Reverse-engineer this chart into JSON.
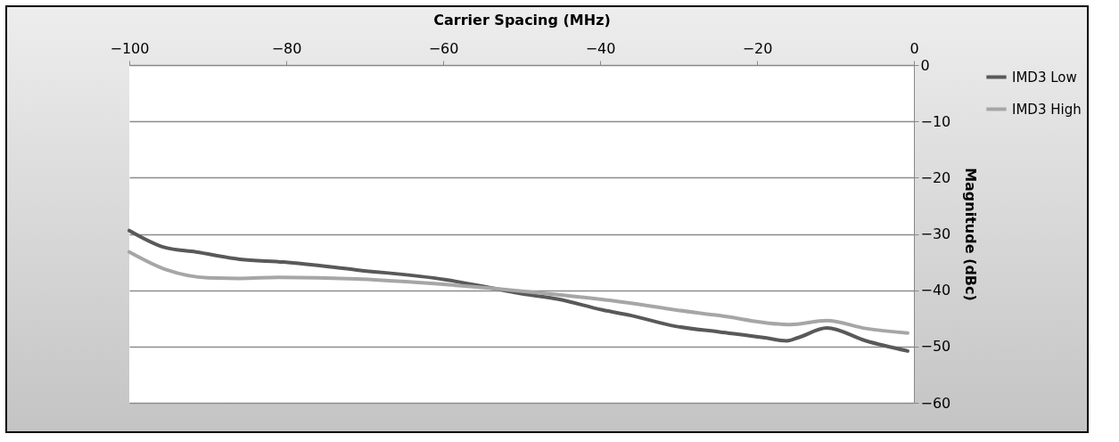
{
  "chart_data": {
    "type": "line",
    "xlabel": "Carrier Spacing (MHz)",
    "ylabel": "Magnitude (dBc)",
    "xlim": [
      -100,
      0
    ],
    "xticks": [
      -100,
      -80,
      -60,
      -40,
      -20,
      0
    ],
    "ylim": [
      -60,
      0
    ],
    "yticks": [
      0,
      -10,
      -20,
      -30,
      -40,
      -50,
      -60
    ],
    "grid": "y",
    "legend": "top right",
    "line_style": "solid",
    "series": [
      {
        "name": "IMD3 Low",
        "color": "#595959",
        "x": [
          -100,
          -95.5,
          -91.5,
          -85.9,
          -80.3,
          -71,
          -59.8,
          -53.5,
          -50.5,
          -45.3,
          -39.7,
          -36,
          -30.4,
          -24.8,
          -19.2,
          -16.2,
          -14.7,
          -11.1,
          -6.1,
          -0.8
        ],
        "values": [
          -29.4,
          -32.4,
          -33.2,
          -34.5,
          -35,
          -36.4,
          -38.1,
          -39.7,
          -40.5,
          -41.6,
          -43.5,
          -44.5,
          -46.4,
          -47.4,
          -48.4,
          -49,
          -48.4,
          -46.7,
          -49,
          -50.8
        ]
      },
      {
        "name": "IMD3 High",
        "color": "#a6a6a6",
        "x": [
          -100,
          -95.2,
          -90,
          -85.9,
          -81,
          -71,
          -63.6,
          -53.5,
          -45.3,
          -37.1,
          -30.4,
          -24.8,
          -17.3,
          -15.8,
          -11.1,
          -6.1,
          -0.8
        ],
        "values": [
          -33.2,
          -36.4,
          -37.8,
          -37.9,
          -37.7,
          -38,
          -38.6,
          -39.7,
          -40.8,
          -42.1,
          -43.5,
          -44.5,
          -46,
          -46.1,
          -45.4,
          -46.8,
          -47.6
        ]
      }
    ]
  }
}
